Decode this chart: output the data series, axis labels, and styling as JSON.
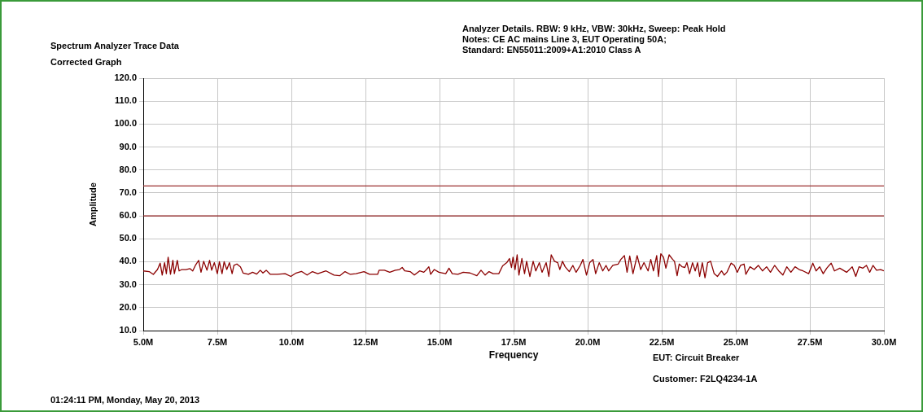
{
  "chart_data": {
    "type": "line",
    "title": "Spectrum Analyzer Trace Data",
    "subtitle": "Corrected Graph",
    "xlabel": "Frequency",
    "ylabel": "Amplitude",
    "annotations": [
      "Analyzer Details.  RBW: 9 kHz, VBW: 30kHz, Sweep: Peak Hold",
      "Notes:  CE AC mains Line 3, EUT Operating 50A;",
      "Standard: EN55011:2009+A1:2010  Class A",
      "EUT: Circuit Breaker",
      "Customer: F2LQ4234-1A",
      "01:24:11 PM, Monday, May 20, 2013"
    ],
    "xlim": [
      5,
      30
    ],
    "ylim": [
      10,
      120
    ],
    "xticks": [
      {
        "value": 5,
        "label": "5.0M"
      },
      {
        "value": 7.5,
        "label": "7.5M"
      },
      {
        "value": 10,
        "label": "10.0M"
      },
      {
        "value": 12.5,
        "label": "12.5M"
      },
      {
        "value": 15,
        "label": "15.0M"
      },
      {
        "value": 17.5,
        "label": "17.5M"
      },
      {
        "value": 20,
        "label": "20.0M"
      },
      {
        "value": 22.5,
        "label": "22.5M"
      },
      {
        "value": 25,
        "label": "25.0M"
      },
      {
        "value": 27.5,
        "label": "27.5M"
      },
      {
        "value": 30,
        "label": "30.0M"
      }
    ],
    "yticks": [
      {
        "value": 10,
        "label": "10.0"
      },
      {
        "value": 20,
        "label": "20.0"
      },
      {
        "value": 30,
        "label": "30.0"
      },
      {
        "value": 40,
        "label": "40.0"
      },
      {
        "value": 50,
        "label": "50.0"
      },
      {
        "value": 60,
        "label": "60.0"
      },
      {
        "value": 70,
        "label": "70.0"
      },
      {
        "value": 80,
        "label": "80.0"
      },
      {
        "value": 90,
        "label": "90.0"
      },
      {
        "value": 100,
        "label": "100.0"
      },
      {
        "value": 110,
        "label": "110.0"
      },
      {
        "value": 120,
        "label": "120.0"
      }
    ],
    "grid": true,
    "legend": false,
    "marker": "none",
    "line_style": "solid",
    "ref_lines": [
      {
        "axis": "y",
        "value": 73,
        "color": "#9b3030"
      },
      {
        "axis": "y",
        "value": 60,
        "color": "#8b1a1a"
      }
    ],
    "series": [
      {
        "color": "#8b0000",
        "x": [
          5.0,
          5.2,
          5.34,
          5.48,
          5.57,
          5.64,
          5.72,
          5.78,
          5.84,
          5.92,
          6.0,
          6.05,
          6.15,
          6.21,
          6.3,
          6.44,
          6.58,
          6.67,
          6.76,
          6.87,
          6.95,
          7.04,
          7.15,
          7.24,
          7.31,
          7.4,
          7.5,
          7.57,
          7.66,
          7.73,
          7.82,
          7.91,
          8.0,
          8.06,
          8.16,
          8.28,
          8.37,
          8.55,
          8.69,
          8.83,
          8.95,
          9.04,
          9.15,
          9.29,
          9.52,
          9.79,
          9.98,
          10.16,
          10.34,
          10.53,
          10.71,
          10.89,
          11.17,
          11.44,
          11.63,
          11.81,
          11.99,
          12.18,
          12.45,
          12.64,
          12.91,
          12.96,
          13.14,
          13.32,
          13.51,
          13.65,
          13.74,
          13.83,
          14.01,
          14.15,
          14.33,
          14.47,
          14.56,
          14.64,
          14.7,
          14.82,
          14.98,
          15.21,
          15.32,
          15.43,
          15.62,
          15.8,
          16.03,
          16.26,
          16.4,
          16.54,
          16.67,
          16.81,
          17.0,
          17.13,
          17.27,
          17.36,
          17.43,
          17.48,
          17.55,
          17.62,
          17.68,
          17.78,
          17.87,
          17.94,
          18.05,
          18.16,
          18.25,
          18.37,
          18.46,
          18.6,
          18.69,
          18.77,
          18.88,
          18.99,
          19.06,
          19.15,
          19.24,
          19.38,
          19.5,
          19.61,
          19.75,
          19.84,
          19.96,
          20.07,
          20.18,
          20.27,
          20.39,
          20.51,
          20.62,
          20.71,
          20.85,
          21.03,
          21.12,
          21.24,
          21.33,
          21.42,
          21.53,
          21.67,
          21.79,
          21.9,
          22.04,
          22.13,
          22.22,
          22.33,
          22.39,
          22.47,
          22.56,
          22.64,
          22.75,
          22.87,
          22.93,
          23.02,
          23.09,
          23.19,
          23.28,
          23.35,
          23.44,
          23.54,
          23.63,
          23.71,
          23.78,
          23.87,
          23.96,
          24.05,
          24.15,
          24.27,
          24.38,
          24.52,
          24.61,
          24.7,
          24.84,
          24.95,
          25.05,
          25.16,
          25.28,
          25.34,
          25.48,
          25.62,
          25.76,
          25.9,
          26.04,
          26.17,
          26.31,
          26.45,
          26.59,
          26.72,
          26.86,
          27.0,
          27.14,
          27.27,
          27.46,
          27.6,
          27.71,
          27.83,
          27.95,
          28.07,
          28.22,
          28.33,
          28.51,
          28.74,
          28.93,
          29.05,
          29.16,
          29.29,
          29.41,
          29.52,
          29.63,
          29.75,
          29.89,
          30.0
        ],
        "values": [
          36.0,
          35.7,
          34.5,
          36.6,
          39.4,
          34.2,
          39.6,
          34.8,
          42.0,
          34.5,
          40.6,
          34.8,
          40.6,
          36.0,
          36.6,
          36.6,
          37.0,
          36.0,
          38.4,
          40.6,
          35.4,
          40.2,
          36.3,
          40.6,
          36.3,
          39.6,
          34.8,
          40.0,
          34.8,
          40.0,
          36.6,
          39.6,
          34.8,
          38.4,
          39.0,
          37.8,
          35.1,
          34.5,
          35.4,
          34.6,
          36.3,
          35.1,
          36.3,
          34.5,
          34.5,
          34.8,
          33.6,
          35.1,
          35.8,
          34.2,
          35.7,
          34.8,
          36.0,
          34.2,
          33.9,
          35.7,
          34.5,
          34.8,
          35.7,
          34.5,
          34.5,
          36.3,
          36.3,
          35.4,
          36.3,
          36.6,
          37.5,
          36.0,
          35.7,
          34.2,
          36.0,
          35.4,
          36.6,
          37.8,
          34.5,
          36.6,
          35.4,
          34.8,
          37.2,
          34.8,
          34.5,
          35.4,
          35.1,
          33.9,
          36.3,
          34.2,
          35.7,
          34.8,
          34.8,
          38.2,
          39.6,
          41.4,
          37.5,
          42.0,
          36.6,
          43.0,
          34.2,
          41.4,
          34.8,
          40.2,
          33.6,
          40.2,
          36.0,
          39.6,
          35.4,
          39.6,
          33.6,
          43.0,
          40.2,
          39.6,
          36.6,
          40.2,
          37.8,
          35.7,
          38.4,
          35.4,
          38.4,
          41.0,
          34.2,
          39.6,
          41.0,
          34.8,
          39.6,
          36.0,
          38.4,
          36.0,
          38.4,
          39.0,
          41.0,
          42.7,
          35.4,
          42.5,
          34.8,
          42.7,
          36.6,
          39.6,
          36.0,
          41.0,
          36.0,
          42.7,
          33.6,
          43.5,
          42.0,
          37.2,
          43.0,
          41.0,
          40.2,
          33.9,
          39.0,
          37.8,
          37.5,
          39.6,
          34.8,
          39.6,
          36.0,
          39.6,
          33.6,
          39.6,
          33.0,
          39.6,
          40.2,
          34.8,
          33.6,
          36.0,
          34.2,
          35.4,
          39.4,
          38.4,
          35.4,
          38.4,
          39.0,
          34.5,
          37.8,
          36.6,
          38.4,
          36.0,
          37.8,
          35.4,
          38.4,
          36.0,
          34.2,
          37.8,
          35.4,
          37.8,
          36.6,
          36.0,
          34.8,
          39.4,
          36.0,
          37.8,
          34.8,
          37.2,
          39.4,
          36.0,
          37.2,
          35.4,
          37.8,
          33.6,
          37.8,
          37.2,
          38.4,
          35.4,
          38.4,
          36.3,
          36.6,
          36.0
        ]
      }
    ]
  }
}
